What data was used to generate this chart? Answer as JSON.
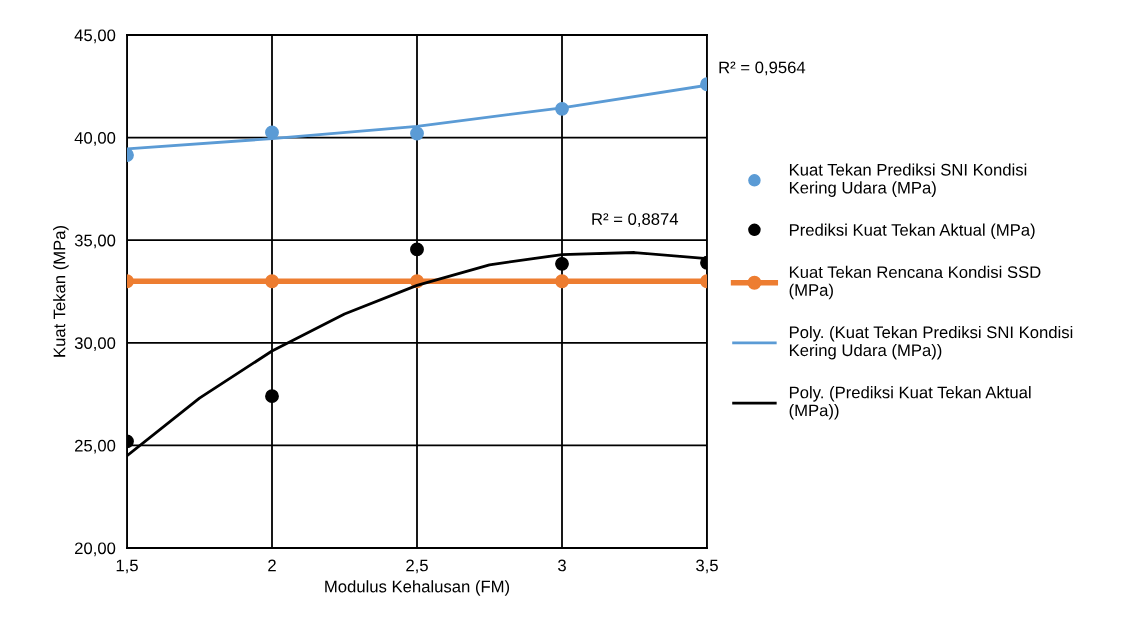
{
  "chart_data": {
    "type": "scatter",
    "xlabel": "Modulus Kehalusan (FM)",
    "ylabel": "Kuat Tekan (MPa)",
    "x": [
      1.5,
      2,
      2.5,
      3,
      3.5
    ],
    "series": [
      {
        "name": "Kuat Tekan Prediksi SNI Kondisi Kering Udara (MPa)",
        "color": "#5b9bd5",
        "marker": "circle",
        "values": [
          39.15,
          40.25,
          40.2,
          41.4,
          42.6
        ]
      },
      {
        "name": "Prediksi Kuat Tekan Aktual (MPa)",
        "color": "#000000",
        "marker": "circle",
        "values": [
          25.2,
          27.4,
          34.55,
          33.85,
          33.9
        ]
      },
      {
        "name": "Kuat Tekan Rencana Kondisi SSD (MPa)",
        "type": "line",
        "color": "#ed7d31",
        "marker": "circle",
        "line_style": "solid",
        "values": [
          33.0,
          33.0,
          33.0,
          33.0,
          33.0
        ]
      },
      {
        "name": "Poly. (Kuat Tekan Prediksi SNI Kondisi Kering Udara (MPa))",
        "type": "line",
        "color": "#5b9bd5",
        "marker": "none",
        "line_style": "solid",
        "x": [
          1.5,
          2,
          2.5,
          3,
          3.5
        ],
        "values": [
          39.45,
          39.95,
          40.55,
          41.45,
          42.55
        ]
      },
      {
        "name": "Poly. (Prediksi Kuat Tekan Aktual (MPa))",
        "type": "line",
        "color": "#000000",
        "marker": "none",
        "line_style": "solid",
        "x": [
          1.5,
          1.75,
          2,
          2.25,
          2.5,
          2.75,
          3,
          3.25,
          3.5
        ],
        "values": [
          24.5,
          27.3,
          29.6,
          31.4,
          32.8,
          33.8,
          34.3,
          34.4,
          34.1
        ]
      }
    ],
    "annotations": [
      {
        "text": "R² = 0,9564",
        "x": 3.5,
        "y": 42.6
      },
      "R² = 0,8874"
    ],
    "xlim": [
      1.5,
      3.5
    ],
    "xticks": [
      {
        "value": 1.5,
        "label": "1,5"
      },
      2,
      {
        "value": 2.5,
        "label": "2,5"
      },
      3,
      {
        "value": 3.5,
        "label": "3,5"
      }
    ],
    "ylim": [
      20,
      45
    ],
    "yticks": [
      {
        "value": 20,
        "label": "20,00"
      },
      {
        "value": 25,
        "label": "25,00"
      },
      {
        "value": 30,
        "label": "30,00"
      },
      {
        "value": 35,
        "label": "35,00"
      },
      {
        "value": 40,
        "label": "40,00"
      },
      {
        "value": 45,
        "label": "45,00"
      }
    ],
    "grid": true,
    "legend": "right"
  }
}
